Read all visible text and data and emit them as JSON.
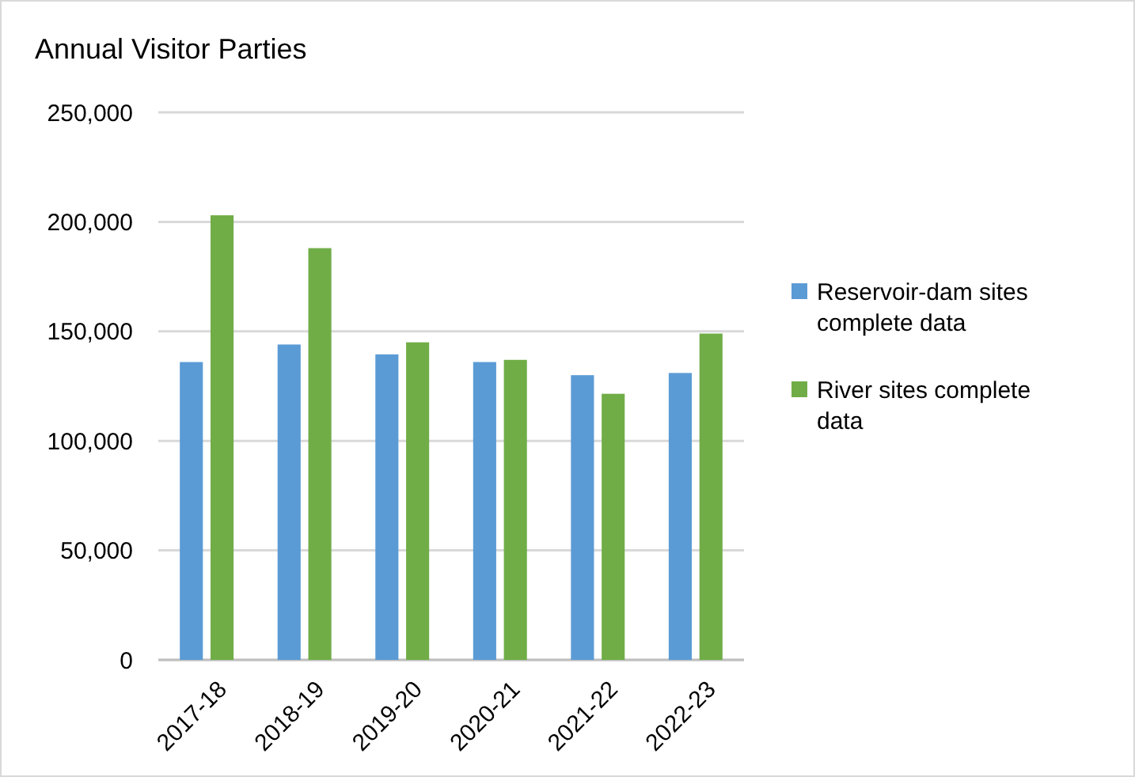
{
  "chart_data": {
    "type": "bar",
    "title": "Annual Visitor Parties",
    "categories": [
      "2017-18",
      "2018-19",
      "2019-20",
      "2020-21",
      "2021-22",
      "2022-23"
    ],
    "series": [
      {
        "name": "Reservoir-dam sites complete data",
        "color": "#5b9bd5",
        "values": [
          136000,
          144000,
          139500,
          136000,
          130000,
          131000
        ]
      },
      {
        "name": "River sites complete data",
        "color": "#70ad47",
        "values": [
          203000,
          188000,
          145000,
          137000,
          121500,
          149000
        ]
      }
    ],
    "ylim": [
      0,
      250000
    ],
    "yticks": [
      {
        "value": 0,
        "label": "0"
      },
      {
        "value": 50000,
        "label": "50,000"
      },
      {
        "value": 100000,
        "label": "100,000"
      },
      {
        "value": 150000,
        "label": "150,000"
      },
      {
        "value": 200000,
        "label": "200,000"
      },
      {
        "value": 250000,
        "label": "250,000"
      }
    ],
    "grid": true,
    "legend": "right"
  }
}
